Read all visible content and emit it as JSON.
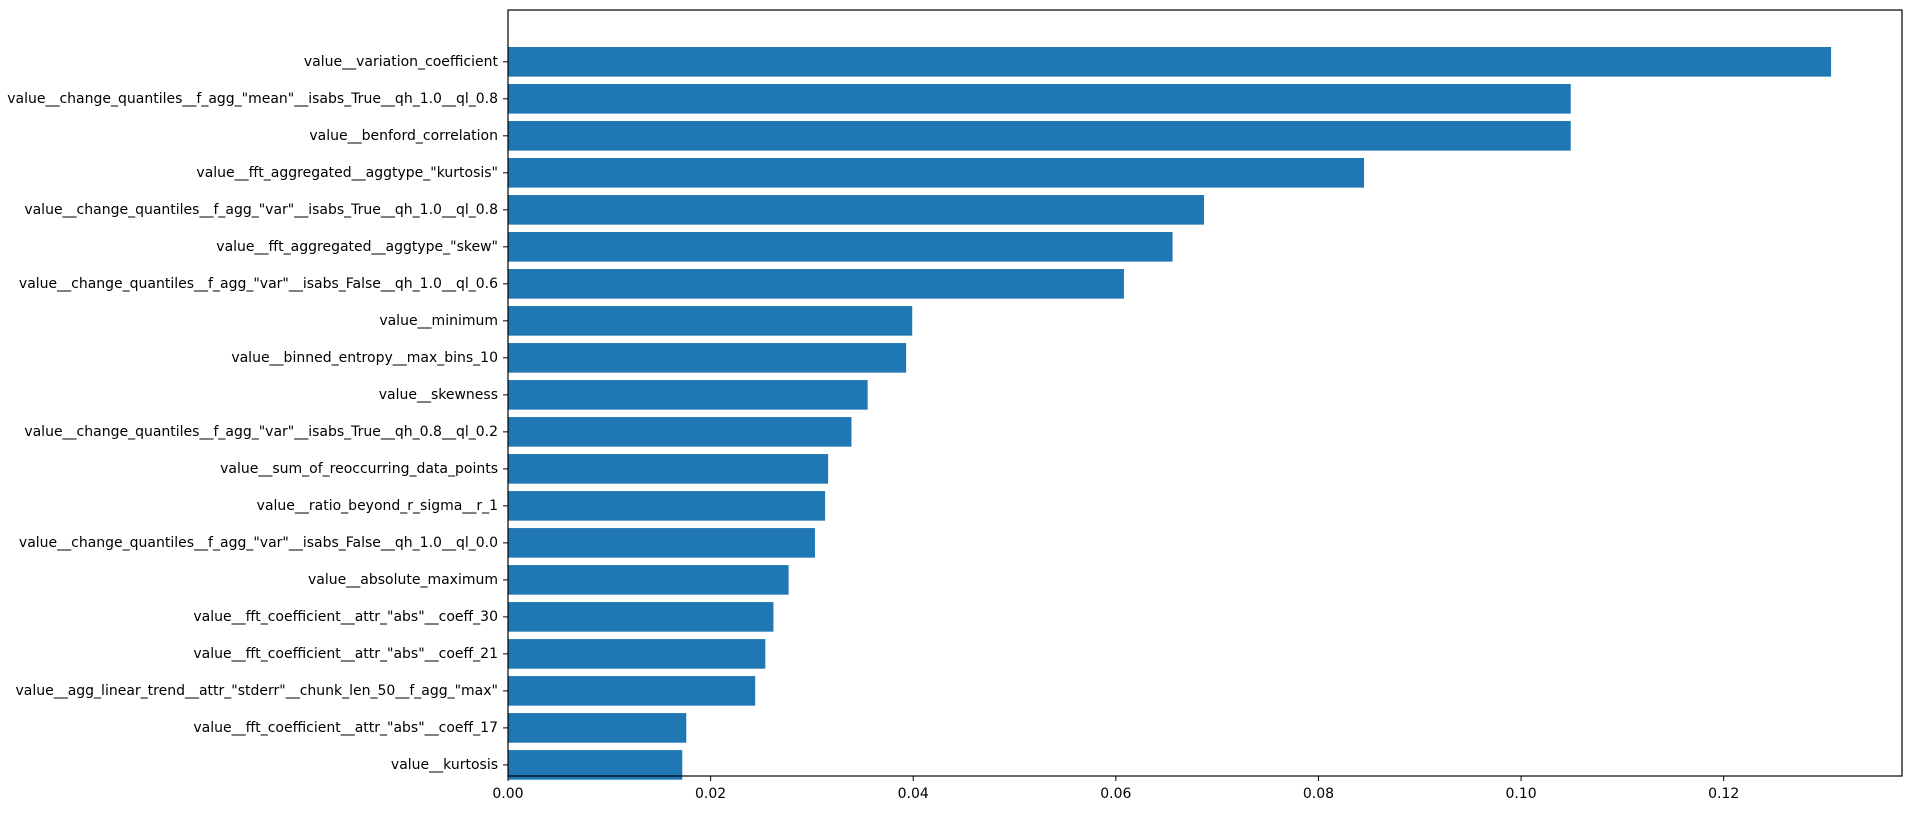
{
  "chart_data": {
    "type": "bar",
    "orientation": "horizontal",
    "title": "",
    "xlabel": "",
    "ylabel": "",
    "xlim": [
      0,
      0.1376
    ],
    "grid": false,
    "legend": "none",
    "bar_color": "#1f77b4",
    "xticks": [
      {
        "value": 0.0,
        "label": "0.00"
      },
      {
        "value": 0.02,
        "label": "0.02"
      },
      {
        "value": 0.04,
        "label": "0.04"
      },
      {
        "value": 0.06,
        "label": "0.06"
      },
      {
        "value": 0.08,
        "label": "0.08"
      },
      {
        "value": 0.1,
        "label": "0.10"
      },
      {
        "value": 0.12,
        "label": "0.12"
      }
    ],
    "categories": [
      "value__variation_coefficient",
      "value__change_quantiles__f_agg_\"mean\"__isabs_True__qh_1.0__ql_0.8",
      "value__benford_correlation",
      "value__fft_aggregated__aggtype_\"kurtosis\"",
      "value__change_quantiles__f_agg_\"var\"__isabs_True__qh_1.0__ql_0.8",
      "value__fft_aggregated__aggtype_\"skew\"",
      "value__change_quantiles__f_agg_\"var\"__isabs_False__qh_1.0__ql_0.6",
      "value__minimum",
      "value__binned_entropy__max_bins_10",
      "value__skewness",
      "value__change_quantiles__f_agg_\"var\"__isabs_True__qh_0.8__ql_0.2",
      "value__sum_of_reoccurring_data_points",
      "value__ratio_beyond_r_sigma__r_1",
      "value__change_quantiles__f_agg_\"var\"__isabs_False__qh_1.0__ql_0.0",
      "value__absolute_maximum",
      "value__fft_coefficient__attr_\"abs\"__coeff_30",
      "value__fft_coefficient__attr_\"abs\"__coeff_21",
      "value__agg_linear_trend__attr_\"stderr\"__chunk_len_50__f_agg_\"max\"",
      "value__fft_coefficient__attr_\"abs\"__coeff_17",
      "value__kurtosis"
    ],
    "values": [
      0.1306,
      0.1049,
      0.1049,
      0.0845,
      0.0687,
      0.0656,
      0.0608,
      0.0399,
      0.0393,
      0.0355,
      0.0339,
      0.0316,
      0.0313,
      0.0303,
      0.0277,
      0.0262,
      0.0254,
      0.0244,
      0.0176,
      0.0172
    ]
  }
}
